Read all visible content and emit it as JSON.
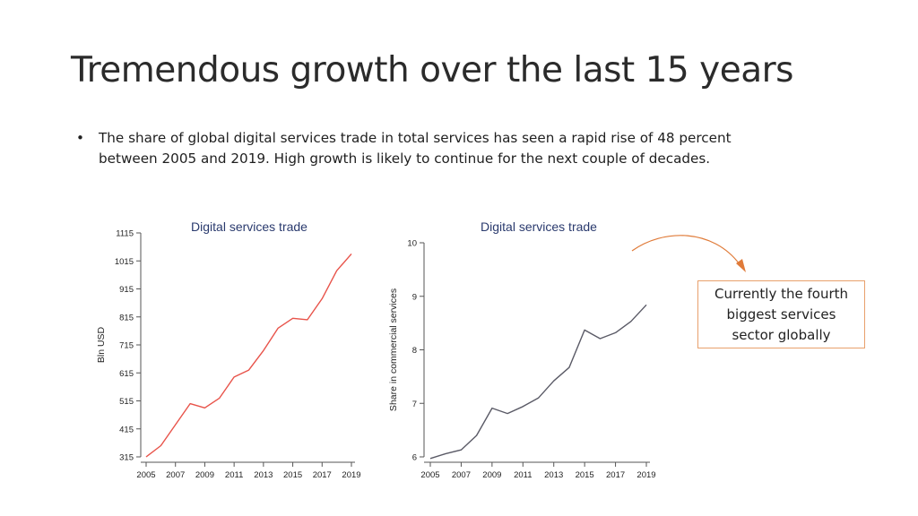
{
  "slide": {
    "title": "Tremendous growth over the last 15 years",
    "bullet_symbol": "•",
    "bullet_text": "The share of global digital services trade in total services has seen a rapid rise of 48 percent between 2005 and 2019. High growth is likely to continue for the next couple of decades.",
    "callout": "Currently the fourth biggest services sector globally"
  },
  "colors": {
    "left_line": "#e8534a",
    "right_line": "#5a5a66",
    "title_text": "#2a3a6e",
    "callout_border": "#e8a06c",
    "arrow": "#e07b39"
  },
  "chart_data": [
    {
      "type": "line",
      "title": "Digital services trade",
      "xlabel": "",
      "ylabel": "Bln USD",
      "x": [
        2005,
        2006,
        2007,
        2008,
        2009,
        2010,
        2011,
        2012,
        2013,
        2014,
        2015,
        2016,
        2017,
        2018,
        2019
      ],
      "values": [
        315,
        355,
        430,
        505,
        490,
        525,
        600,
        625,
        695,
        775,
        810,
        805,
        880,
        980,
        1040
      ],
      "xticks": [
        "2005",
        "2007",
        "2009",
        "2011",
        "2013",
        "2015",
        "2017",
        "2019"
      ],
      "yticks": [
        "315",
        "415",
        "515",
        "615",
        "715",
        "815",
        "915",
        "1015",
        "1115"
      ],
      "xlim": [
        2005,
        2019
      ],
      "ylim": [
        315,
        1115
      ],
      "grid": false
    },
    {
      "type": "line",
      "title": "Digital services trade",
      "xlabel": "",
      "ylabel": "Share in commercial services",
      "x": [
        2005,
        2006,
        2007,
        2008,
        2009,
        2010,
        2011,
        2012,
        2013,
        2014,
        2015,
        2016,
        2017,
        2018,
        2019
      ],
      "values": [
        5.97,
        6.06,
        6.13,
        6.4,
        6.91,
        6.81,
        6.94,
        7.1,
        7.42,
        7.67,
        8.37,
        8.21,
        8.32,
        8.53,
        8.84
      ],
      "xticks": [
        "2005",
        "2007",
        "2009",
        "2011",
        "2013",
        "2015",
        "2017",
        "2019"
      ],
      "yticks": [
        "6",
        "7",
        "8",
        "9",
        "10"
      ],
      "xlim": [
        2005,
        2019
      ],
      "ylim": [
        6,
        10
      ],
      "grid": false
    }
  ]
}
